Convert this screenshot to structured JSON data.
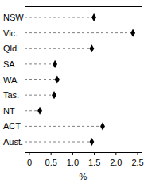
{
  "chart_data": {
    "type": "dot",
    "orientation": "horizontal",
    "categories": [
      "NSW",
      "Vic.",
      "Qld",
      "SA",
      "WA",
      "Tas.",
      "NT",
      "ACT",
      "Aust."
    ],
    "values": [
      1.5,
      2.4,
      1.45,
      0.6,
      0.65,
      0.58,
      0.25,
      1.7,
      1.45
    ],
    "color": "#000000",
    "marker": "diamond",
    "line_style": "dashed",
    "x_label": "%",
    "xlim": [
      -0.1,
      2.6
    ],
    "xticks": [
      0,
      0.5,
      {
        "value": 1,
        "label": "1.0"
      },
      1.5,
      {
        "value": 2,
        "label": "2.0"
      },
      2.5
    ]
  }
}
